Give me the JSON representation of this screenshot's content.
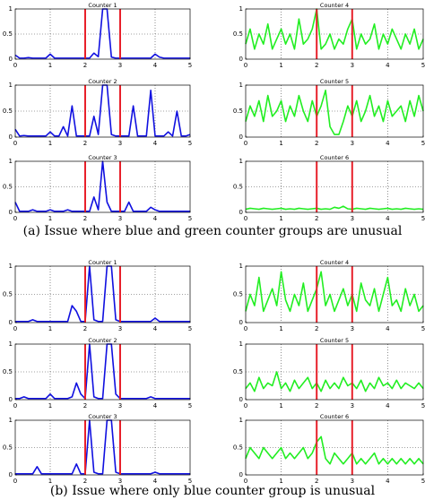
{
  "captions": [
    "(a) Issue where blue and green counter groups are unusual",
    "(b) Issue where only blue counter group is unusual"
  ],
  "chart_data": [
    {
      "type": "line",
      "title": "Counter 1",
      "color": "#1010e0",
      "x": [
        0,
        0.125,
        0.25,
        0.375,
        0.5,
        0.625,
        0.75,
        0.875,
        1,
        1.125,
        1.25,
        1.375,
        1.5,
        1.625,
        1.75,
        1.875,
        2,
        2.125,
        2.25,
        2.375,
        2.5,
        2.625,
        2.75,
        2.875,
        3,
        3.125,
        3.25,
        3.375,
        3.5,
        3.625,
        3.75,
        3.875,
        4,
        4.125,
        4.25,
        4.375,
        4.5,
        4.625,
        4.75,
        4.875,
        5
      ],
      "values": [
        0.08,
        0.02,
        0.02,
        0.03,
        0.02,
        0.02,
        0.02,
        0.02,
        0.1,
        0.02,
        0.02,
        0.02,
        0.02,
        0.02,
        0.02,
        0.02,
        0.02,
        0.02,
        0.12,
        0.05,
        1,
        1,
        0.04,
        0.02,
        0.02,
        0.02,
        0.02,
        0.02,
        0.02,
        0.02,
        0.02,
        0.02,
        0.1,
        0.04,
        0.02,
        0.02,
        0.02,
        0.02,
        0.02,
        0.02,
        0.02
      ],
      "xlim": [
        0,
        5
      ],
      "ylim": [
        0,
        1
      ],
      "xticks": [
        0,
        1,
        2,
        3,
        4,
        5
      ],
      "yticks": [
        0,
        0.5,
        1
      ],
      "grid": true,
      "vlines": [
        2,
        3
      ],
      "vline_color": "#e8202a"
    },
    {
      "type": "line",
      "title": "Counter 4",
      "color": "#22ee22",
      "x": [
        0,
        0.125,
        0.25,
        0.375,
        0.5,
        0.625,
        0.75,
        0.875,
        1,
        1.125,
        1.25,
        1.375,
        1.5,
        1.625,
        1.75,
        1.875,
        2,
        2.125,
        2.25,
        2.375,
        2.5,
        2.625,
        2.75,
        2.875,
        3,
        3.125,
        3.25,
        3.375,
        3.5,
        3.625,
        3.75,
        3.875,
        4,
        4.125,
        4.25,
        4.375,
        4.5,
        4.625,
        4.75,
        4.875,
        5
      ],
      "values": [
        0.3,
        0.6,
        0.2,
        0.5,
        0.3,
        0.7,
        0.2,
        0.4,
        0.6,
        0.3,
        0.5,
        0.2,
        0.8,
        0.3,
        0.4,
        0.6,
        1,
        0.2,
        0.3,
        0.5,
        0.2,
        0.4,
        0.3,
        0.6,
        0.8,
        0.2,
        0.5,
        0.3,
        0.4,
        0.7,
        0.2,
        0.5,
        0.3,
        0.6,
        0.4,
        0.2,
        0.5,
        0.3,
        0.6,
        0.2,
        0.4
      ],
      "xlim": [
        0,
        5
      ],
      "ylim": [
        0,
        1
      ],
      "xticks": [
        0,
        1,
        2,
        3,
        4,
        5
      ],
      "yticks": [
        0,
        0.5,
        1
      ],
      "grid": true,
      "vlines": [
        2,
        3
      ],
      "vline_color": "#e8202a"
    },
    {
      "type": "line",
      "title": "Counter 2",
      "color": "#1010e0",
      "x": [
        0,
        0.125,
        0.25,
        0.375,
        0.5,
        0.625,
        0.75,
        0.875,
        1,
        1.125,
        1.25,
        1.375,
        1.5,
        1.625,
        1.75,
        1.875,
        2,
        2.125,
        2.25,
        2.375,
        2.5,
        2.625,
        2.75,
        2.875,
        3,
        3.125,
        3.25,
        3.375,
        3.5,
        3.625,
        3.75,
        3.875,
        4,
        4.125,
        4.25,
        4.375,
        4.5,
        4.625,
        4.75,
        4.875,
        5
      ],
      "values": [
        0.15,
        0.02,
        0.03,
        0.02,
        0.02,
        0.02,
        0.02,
        0.02,
        0.1,
        0.02,
        0.02,
        0.2,
        0.02,
        0.6,
        0.02,
        0.02,
        0.02,
        0.02,
        0.4,
        0.05,
        1,
        1,
        0.05,
        0.02,
        0.02,
        0.02,
        0.02,
        0.6,
        0.02,
        0.02,
        0.02,
        0.9,
        0.02,
        0.02,
        0.02,
        0.1,
        0.02,
        0.5,
        0.02,
        0.02,
        0.05
      ],
      "xlim": [
        0,
        5
      ],
      "ylim": [
        0,
        1
      ],
      "xticks": [
        0,
        1,
        2,
        3,
        4,
        5
      ],
      "yticks": [
        0,
        0.5,
        1
      ],
      "grid": true,
      "vlines": [
        2,
        3
      ],
      "vline_color": "#e8202a"
    },
    {
      "type": "line",
      "title": "Counter 5",
      "color": "#22ee22",
      "x": [
        0,
        0.125,
        0.25,
        0.375,
        0.5,
        0.625,
        0.75,
        0.875,
        1,
        1.125,
        1.25,
        1.375,
        1.5,
        1.625,
        1.75,
        1.875,
        2,
        2.125,
        2.25,
        2.375,
        2.5,
        2.625,
        2.75,
        2.875,
        3,
        3.125,
        3.25,
        3.375,
        3.5,
        3.625,
        3.75,
        3.875,
        4,
        4.125,
        4.25,
        4.375,
        4.5,
        4.625,
        4.75,
        4.875,
        5
      ],
      "values": [
        0.3,
        0.6,
        0.4,
        0.7,
        0.3,
        0.8,
        0.4,
        0.5,
        0.7,
        0.3,
        0.6,
        0.4,
        0.8,
        0.5,
        0.3,
        0.7,
        0.4,
        0.6,
        0.9,
        0.2,
        0.05,
        0.05,
        0.3,
        0.6,
        0.4,
        0.7,
        0.3,
        0.5,
        0.8,
        0.4,
        0.6,
        0.3,
        0.7,
        0.4,
        0.5,
        0.6,
        0.3,
        0.7,
        0.4,
        0.8,
        0.5
      ],
      "xlim": [
        0,
        5
      ],
      "ylim": [
        0,
        1
      ],
      "xticks": [
        0,
        1,
        2,
        3,
        4,
        5
      ],
      "yticks": [
        0,
        0.5,
        1
      ],
      "grid": true,
      "vlines": [
        2,
        3
      ],
      "vline_color": "#e8202a"
    },
    {
      "type": "line",
      "title": "Counter 3",
      "color": "#1010e0",
      "x": [
        0,
        0.125,
        0.25,
        0.375,
        0.5,
        0.625,
        0.75,
        0.875,
        1,
        1.125,
        1.25,
        1.375,
        1.5,
        1.625,
        1.75,
        1.875,
        2,
        2.125,
        2.25,
        2.375,
        2.5,
        2.625,
        2.75,
        2.875,
        3,
        3.125,
        3.25,
        3.375,
        3.5,
        3.625,
        3.75,
        3.875,
        4,
        4.125,
        4.25,
        4.375,
        4.5,
        4.625,
        4.75,
        4.875,
        5
      ],
      "values": [
        0.2,
        0.02,
        0.02,
        0.02,
        0.05,
        0.02,
        0.02,
        0.02,
        0.05,
        0.02,
        0.02,
        0.02,
        0.05,
        0.02,
        0.02,
        0.02,
        0.02,
        0.02,
        0.3,
        0.05,
        1,
        0.2,
        0.02,
        0.02,
        0.02,
        0.02,
        0.2,
        0.02,
        0.02,
        0.02,
        0.02,
        0.1,
        0.05,
        0.02,
        0.02,
        0.02,
        0.02,
        0.02,
        0.02,
        0.02,
        0.02
      ],
      "xlim": [
        0,
        5
      ],
      "ylim": [
        0,
        1
      ],
      "xticks": [
        0,
        1,
        2,
        3,
        4,
        5
      ],
      "yticks": [
        0,
        0.5,
        1
      ],
      "grid": true,
      "vlines": [
        2,
        3
      ],
      "vline_color": "#e8202a"
    },
    {
      "type": "line",
      "title": "Counter 6",
      "color": "#22ee22",
      "x": [
        0,
        0.125,
        0.25,
        0.375,
        0.5,
        0.625,
        0.75,
        0.875,
        1,
        1.125,
        1.25,
        1.375,
        1.5,
        1.625,
        1.75,
        1.875,
        2,
        2.125,
        2.25,
        2.375,
        2.5,
        2.625,
        2.75,
        2.875,
        3,
        3.125,
        3.25,
        3.375,
        3.5,
        3.625,
        3.75,
        3.875,
        4,
        4.125,
        4.25,
        4.375,
        4.5,
        4.625,
        4.75,
        4.875,
        5
      ],
      "values": [
        0.06,
        0.08,
        0.07,
        0.06,
        0.08,
        0.07,
        0.06,
        0.07,
        0.08,
        0.06,
        0.07,
        0.06,
        0.08,
        0.07,
        0.06,
        0.07,
        0.08,
        0.06,
        0.07,
        0.06,
        0.1,
        0.08,
        0.12,
        0.07,
        0.06,
        0.08,
        0.07,
        0.06,
        0.08,
        0.07,
        0.06,
        0.07,
        0.08,
        0.06,
        0.07,
        0.06,
        0.08,
        0.07,
        0.06,
        0.07,
        0.06
      ],
      "xlim": [
        0,
        5
      ],
      "ylim": [
        0,
        1
      ],
      "xticks": [
        0,
        1,
        2,
        3,
        4,
        5
      ],
      "yticks": [
        0,
        0.5,
        1
      ],
      "grid": true,
      "vlines": [
        2,
        3
      ],
      "vline_color": "#e8202a"
    },
    {
      "type": "line",
      "title": "Counter 1",
      "color": "#1010e0",
      "x": [
        0,
        0.125,
        0.25,
        0.375,
        0.5,
        0.625,
        0.75,
        0.875,
        1,
        1.125,
        1.25,
        1.375,
        1.5,
        1.625,
        1.75,
        1.875,
        2,
        2.125,
        2.25,
        2.375,
        2.5,
        2.625,
        2.75,
        2.875,
        3,
        3.125,
        3.25,
        3.375,
        3.5,
        3.625,
        3.75,
        3.875,
        4,
        4.125,
        4.25,
        4.375,
        4.5,
        4.625,
        4.75,
        4.875,
        5
      ],
      "values": [
        0.02,
        0.02,
        0.02,
        0.02,
        0.05,
        0.02,
        0.02,
        0.02,
        0.02,
        0.02,
        0.02,
        0.02,
        0.02,
        0.3,
        0.2,
        0.02,
        0.02,
        1,
        0.05,
        0.02,
        0.02,
        1,
        1,
        0.05,
        0.02,
        0.02,
        0.02,
        0.02,
        0.02,
        0.02,
        0.02,
        0.02,
        0.08,
        0.02,
        0.02,
        0.02,
        0.02,
        0.02,
        0.02,
        0.02,
        0.02
      ],
      "xlim": [
        0,
        5
      ],
      "ylim": [
        0,
        1
      ],
      "xticks": [
        0,
        1,
        2,
        3,
        4,
        5
      ],
      "yticks": [
        0,
        0.5,
        1
      ],
      "grid": true,
      "vlines": [
        2,
        3
      ],
      "vline_color": "#e8202a"
    },
    {
      "type": "line",
      "title": "Counter 4",
      "color": "#22ee22",
      "x": [
        0,
        0.125,
        0.25,
        0.375,
        0.5,
        0.625,
        0.75,
        0.875,
        1,
        1.125,
        1.25,
        1.375,
        1.5,
        1.625,
        1.75,
        1.875,
        2,
        2.125,
        2.25,
        2.375,
        2.5,
        2.625,
        2.75,
        2.875,
        3,
        3.125,
        3.25,
        3.375,
        3.5,
        3.625,
        3.75,
        3.875,
        4,
        4.125,
        4.25,
        4.375,
        4.5,
        4.625,
        4.75,
        4.875,
        5
      ],
      "values": [
        0.2,
        0.5,
        0.3,
        0.8,
        0.2,
        0.4,
        0.6,
        0.3,
        0.9,
        0.4,
        0.2,
        0.5,
        0.3,
        0.7,
        0.2,
        0.4,
        0.6,
        0.9,
        0.3,
        0.5,
        0.2,
        0.4,
        0.6,
        0.3,
        0.5,
        0.2,
        0.7,
        0.4,
        0.3,
        0.6,
        0.2,
        0.5,
        0.8,
        0.3,
        0.4,
        0.2,
        0.6,
        0.3,
        0.5,
        0.2,
        0.3
      ],
      "xlim": [
        0,
        5
      ],
      "ylim": [
        0,
        1
      ],
      "xticks": [
        0,
        1,
        2,
        3,
        4,
        5
      ],
      "yticks": [
        0,
        0.5,
        1
      ],
      "grid": true,
      "vlines": [
        2,
        3
      ],
      "vline_color": "#e8202a"
    },
    {
      "type": "line",
      "title": "Counter 2",
      "color": "#1010e0",
      "x": [
        0,
        0.125,
        0.25,
        0.375,
        0.5,
        0.625,
        0.75,
        0.875,
        1,
        1.125,
        1.25,
        1.375,
        1.5,
        1.625,
        1.75,
        1.875,
        2,
        2.125,
        2.25,
        2.375,
        2.5,
        2.625,
        2.75,
        2.875,
        3,
        3.125,
        3.25,
        3.375,
        3.5,
        3.625,
        3.75,
        3.875,
        4,
        4.125,
        4.25,
        4.375,
        4.5,
        4.625,
        4.75,
        4.875,
        5
      ],
      "values": [
        0.02,
        0.02,
        0.05,
        0.02,
        0.02,
        0.02,
        0.02,
        0.02,
        0.1,
        0.02,
        0.02,
        0.02,
        0.02,
        0.05,
        0.3,
        0.1,
        0.02,
        1,
        0.05,
        0.02,
        0.02,
        1,
        1,
        0.1,
        0.02,
        0.02,
        0.02,
        0.02,
        0.02,
        0.02,
        0.02,
        0.05,
        0.02,
        0.02,
        0.02,
        0.02,
        0.02,
        0.02,
        0.02,
        0.02,
        0.02
      ],
      "xlim": [
        0,
        5
      ],
      "ylim": [
        0,
        1
      ],
      "xticks": [
        0,
        1,
        2,
        3,
        4,
        5
      ],
      "yticks": [
        0,
        0.5,
        1
      ],
      "grid": true,
      "vlines": [
        2,
        3
      ],
      "vline_color": "#e8202a"
    },
    {
      "type": "line",
      "title": "Counter 5",
      "color": "#22ee22",
      "x": [
        0,
        0.125,
        0.25,
        0.375,
        0.5,
        0.625,
        0.75,
        0.875,
        1,
        1.125,
        1.25,
        1.375,
        1.5,
        1.625,
        1.75,
        1.875,
        2,
        2.125,
        2.25,
        2.375,
        2.5,
        2.625,
        2.75,
        2.875,
        3,
        3.125,
        3.25,
        3.375,
        3.5,
        3.625,
        3.75,
        3.875,
        4,
        4.125,
        4.25,
        4.375,
        4.5,
        4.625,
        4.75,
        4.875,
        5
      ],
      "values": [
        0.2,
        0.3,
        0.15,
        0.4,
        0.2,
        0.3,
        0.25,
        0.5,
        0.2,
        0.3,
        0.15,
        0.35,
        0.2,
        0.3,
        0.4,
        0.2,
        0.3,
        0.15,
        0.35,
        0.2,
        0.3,
        0.2,
        0.4,
        0.25,
        0.3,
        0.2,
        0.35,
        0.15,
        0.3,
        0.2,
        0.4,
        0.25,
        0.3,
        0.2,
        0.35,
        0.2,
        0.3,
        0.25,
        0.2,
        0.3,
        0.2
      ],
      "xlim": [
        0,
        5
      ],
      "ylim": [
        0,
        1
      ],
      "xticks": [
        0,
        1,
        2,
        3,
        4,
        5
      ],
      "yticks": [
        0,
        0.5,
        1
      ],
      "grid": true,
      "vlines": [
        2,
        3
      ],
      "vline_color": "#e8202a"
    },
    {
      "type": "line",
      "title": "Counter 3",
      "color": "#1010e0",
      "x": [
        0,
        0.125,
        0.25,
        0.375,
        0.5,
        0.625,
        0.75,
        0.875,
        1,
        1.125,
        1.25,
        1.375,
        1.5,
        1.625,
        1.75,
        1.875,
        2,
        2.125,
        2.25,
        2.375,
        2.5,
        2.625,
        2.75,
        2.875,
        3,
        3.125,
        3.25,
        3.375,
        3.5,
        3.625,
        3.75,
        3.875,
        4,
        4.125,
        4.25,
        4.375,
        4.5,
        4.625,
        4.75,
        4.875,
        5
      ],
      "values": [
        0.02,
        0.02,
        0.02,
        0.02,
        0.02,
        0.15,
        0.02,
        0.02,
        0.02,
        0.02,
        0.02,
        0.02,
        0.02,
        0.02,
        0.2,
        0.02,
        0.02,
        1,
        0.05,
        0.02,
        0.02,
        1,
        1,
        0.05,
        0.02,
        0.02,
        0.02,
        0.02,
        0.02,
        0.02,
        0.02,
        0.02,
        0.05,
        0.02,
        0.02,
        0.02,
        0.02,
        0.02,
        0.02,
        0.02,
        0.02
      ],
      "xlim": [
        0,
        5
      ],
      "ylim": [
        0,
        1
      ],
      "xticks": [
        0,
        1,
        2,
        3,
        4,
        5
      ],
      "yticks": [
        0,
        0.5,
        1
      ],
      "grid": true,
      "vlines": [
        2,
        3
      ],
      "vline_color": "#e8202a"
    },
    {
      "type": "line",
      "title": "Counter 6",
      "color": "#22ee22",
      "x": [
        0,
        0.125,
        0.25,
        0.375,
        0.5,
        0.625,
        0.75,
        0.875,
        1,
        1.125,
        1.25,
        1.375,
        1.5,
        1.625,
        1.75,
        1.875,
        2,
        2.125,
        2.25,
        2.375,
        2.5,
        2.625,
        2.75,
        2.875,
        3,
        3.125,
        3.25,
        3.375,
        3.5,
        3.625,
        3.75,
        3.875,
        4,
        4.125,
        4.25,
        4.375,
        4.5,
        4.625,
        4.75,
        4.875,
        5
      ],
      "values": [
        0.3,
        0.5,
        0.4,
        0.3,
        0.5,
        0.4,
        0.3,
        0.4,
        0.5,
        0.3,
        0.4,
        0.3,
        0.4,
        0.5,
        0.3,
        0.4,
        0.6,
        0.7,
        0.3,
        0.2,
        0.4,
        0.3,
        0.2,
        0.3,
        0.4,
        0.2,
        0.3,
        0.2,
        0.3,
        0.4,
        0.2,
        0.3,
        0.2,
        0.3,
        0.2,
        0.3,
        0.2,
        0.3,
        0.2,
        0.3,
        0.2
      ],
      "xlim": [
        0,
        5
      ],
      "ylim": [
        0,
        1
      ],
      "xticks": [
        0,
        1,
        2,
        3,
        4,
        5
      ],
      "yticks": [
        0,
        0.5,
        1
      ],
      "grid": true,
      "vlines": [
        2,
        3
      ],
      "vline_color": "#e8202a"
    }
  ]
}
